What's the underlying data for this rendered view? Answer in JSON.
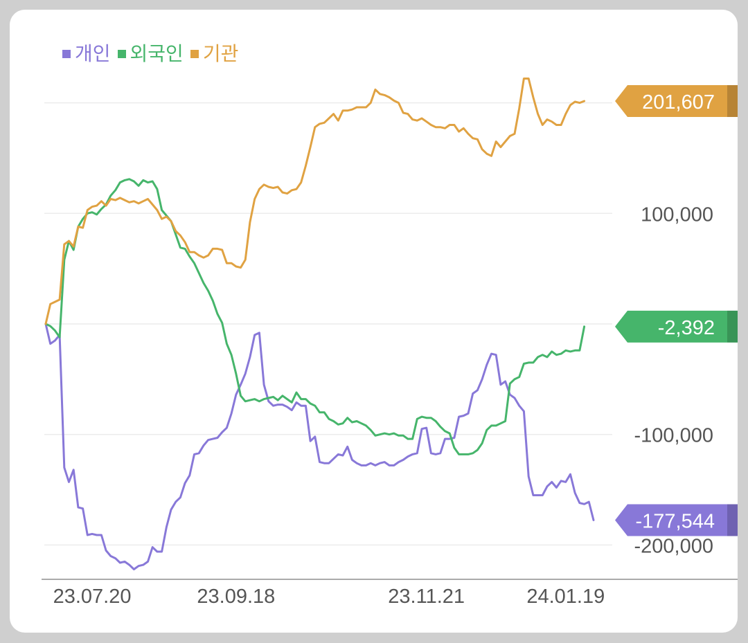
{
  "chart_data": {
    "type": "line",
    "legend_position": "top-left",
    "grid": true,
    "ylim": [
      -230000,
      230000
    ],
    "yticks": [
      {
        "value": 100000,
        "label": "100,000"
      },
      {
        "value": -100000,
        "label": "-100,000"
      },
      {
        "value": -200000,
        "label": "-200,000"
      }
    ],
    "xticks": [
      {
        "index": 10,
        "label": "23.07.20"
      },
      {
        "index": 41,
        "label": "23.09.18"
      },
      {
        "index": 82,
        "label": "23.11.21"
      },
      {
        "index": 112,
        "label": "24.01.19"
      }
    ],
    "series": [
      {
        "name": "개인",
        "color": "#8878d8",
        "last_label": "-177,544",
        "values": [
          0,
          -18000,
          -15000,
          -10000,
          -130000,
          -143000,
          -132000,
          -166000,
          -167000,
          -191000,
          -190000,
          -191000,
          -191000,
          -205000,
          -210000,
          -212000,
          -216000,
          -215000,
          -218000,
          -222000,
          -219000,
          -218000,
          -215000,
          -202000,
          -206000,
          -206000,
          -184000,
          -168000,
          -161000,
          -157000,
          -144000,
          -137000,
          -118000,
          -117000,
          -110000,
          -105000,
          -104000,
          -103000,
          -98000,
          -94000,
          -81000,
          -64000,
          -55000,
          -45000,
          -30000,
          -10000,
          -8000,
          -55000,
          -70000,
          -74000,
          -73000,
          -73000,
          -75000,
          -78000,
          -71000,
          -74000,
          -74000,
          -106000,
          -102000,
          -125000,
          -126000,
          -126000,
          -122000,
          -118000,
          -119000,
          -111000,
          -123000,
          -126000,
          -128000,
          -128000,
          -126000,
          -128000,
          -126000,
          -125000,
          -128000,
          -128000,
          -125000,
          -123000,
          -120000,
          -118000,
          -117000,
          -95000,
          -94000,
          -117000,
          -118000,
          -117000,
          -104000,
          -104000,
          -103000,
          -84000,
          -83000,
          -81000,
          -63000,
          -60000,
          -50000,
          -37000,
          -27000,
          -28000,
          -55000,
          -52000,
          -64000,
          -67000,
          -74000,
          -79000,
          -138000,
          -155000,
          -155000,
          -155000,
          -147000,
          -143000,
          -148000,
          -142000,
          -143000,
          -136000,
          -153000,
          -162000,
          -163000,
          -161000,
          -177544
        ]
      },
      {
        "name": "외국인",
        "color": "#46b56b",
        "last_label": "-2,392",
        "values": [
          0,
          -2000,
          -6000,
          -12000,
          58000,
          75000,
          67000,
          88000,
          95000,
          100000,
          101000,
          99000,
          104000,
          108000,
          116000,
          121000,
          128000,
          130000,
          131000,
          129000,
          125000,
          130000,
          128000,
          129000,
          122000,
          103000,
          98000,
          93000,
          81000,
          69000,
          68000,
          61000,
          55000,
          46000,
          37000,
          30000,
          21000,
          9000,
          1000,
          -18000,
          -28000,
          -45000,
          -65000,
          -70000,
          -69000,
          -68000,
          -70000,
          -68000,
          -67000,
          -66000,
          -69000,
          -65000,
          -68000,
          -71000,
          -62000,
          -68000,
          -68000,
          -72000,
          -74000,
          -80000,
          -80000,
          -86000,
          -88000,
          -91000,
          -90000,
          -85000,
          -89000,
          -88000,
          -90000,
          -92000,
          -96000,
          -101000,
          -100000,
          -99000,
          -100000,
          -99000,
          -101000,
          -101000,
          -104000,
          -104000,
          -86000,
          -84000,
          -85000,
          -85000,
          -88000,
          -93000,
          -97000,
          -99000,
          -112000,
          -118000,
          -118000,
          -118000,
          -117000,
          -114000,
          -108000,
          -96000,
          -92000,
          -92000,
          -90000,
          -88000,
          -54000,
          -50000,
          -48000,
          -36000,
          -35000,
          -35000,
          -30000,
          -28000,
          -30000,
          -25000,
          -28000,
          -27000,
          -24000,
          -25000,
          -24000,
          -24000,
          -2392
        ]
      },
      {
        "name": "기관",
        "color": "#e0a242",
        "last_label": "201,607",
        "values": [
          0,
          18000,
          20000,
          22000,
          72000,
          75000,
          70000,
          88000,
          87000,
          103000,
          106000,
          107000,
          111000,
          107000,
          113000,
          112000,
          114000,
          112000,
          110000,
          111000,
          109000,
          111000,
          113000,
          108000,
          103000,
          95000,
          97000,
          93000,
          84000,
          80000,
          74000,
          65000,
          65000,
          62000,
          60000,
          62000,
          68000,
          68000,
          67000,
          55000,
          55000,
          52000,
          51000,
          58000,
          92000,
          113000,
          122000,
          126000,
          124000,
          123000,
          124000,
          119000,
          118000,
          121000,
          122000,
          128000,
          143000,
          160000,
          178000,
          181000,
          182000,
          186000,
          190000,
          184000,
          193000,
          193000,
          194000,
          196000,
          196000,
          196000,
          200000,
          212000,
          208000,
          207000,
          205000,
          202000,
          200000,
          191000,
          190000,
          185000,
          184000,
          186000,
          183000,
          180000,
          178000,
          178000,
          177000,
          180000,
          180000,
          174000,
          177000,
          172000,
          168000,
          167000,
          158000,
          154000,
          152000,
          165000,
          160000,
          165000,
          170000,
          172000,
          195000,
          222000,
          222000,
          205000,
          190000,
          180000,
          185000,
          183000,
          180000,
          180000,
          190000,
          198000,
          201000,
          200000,
          201607
        ]
      }
    ]
  }
}
